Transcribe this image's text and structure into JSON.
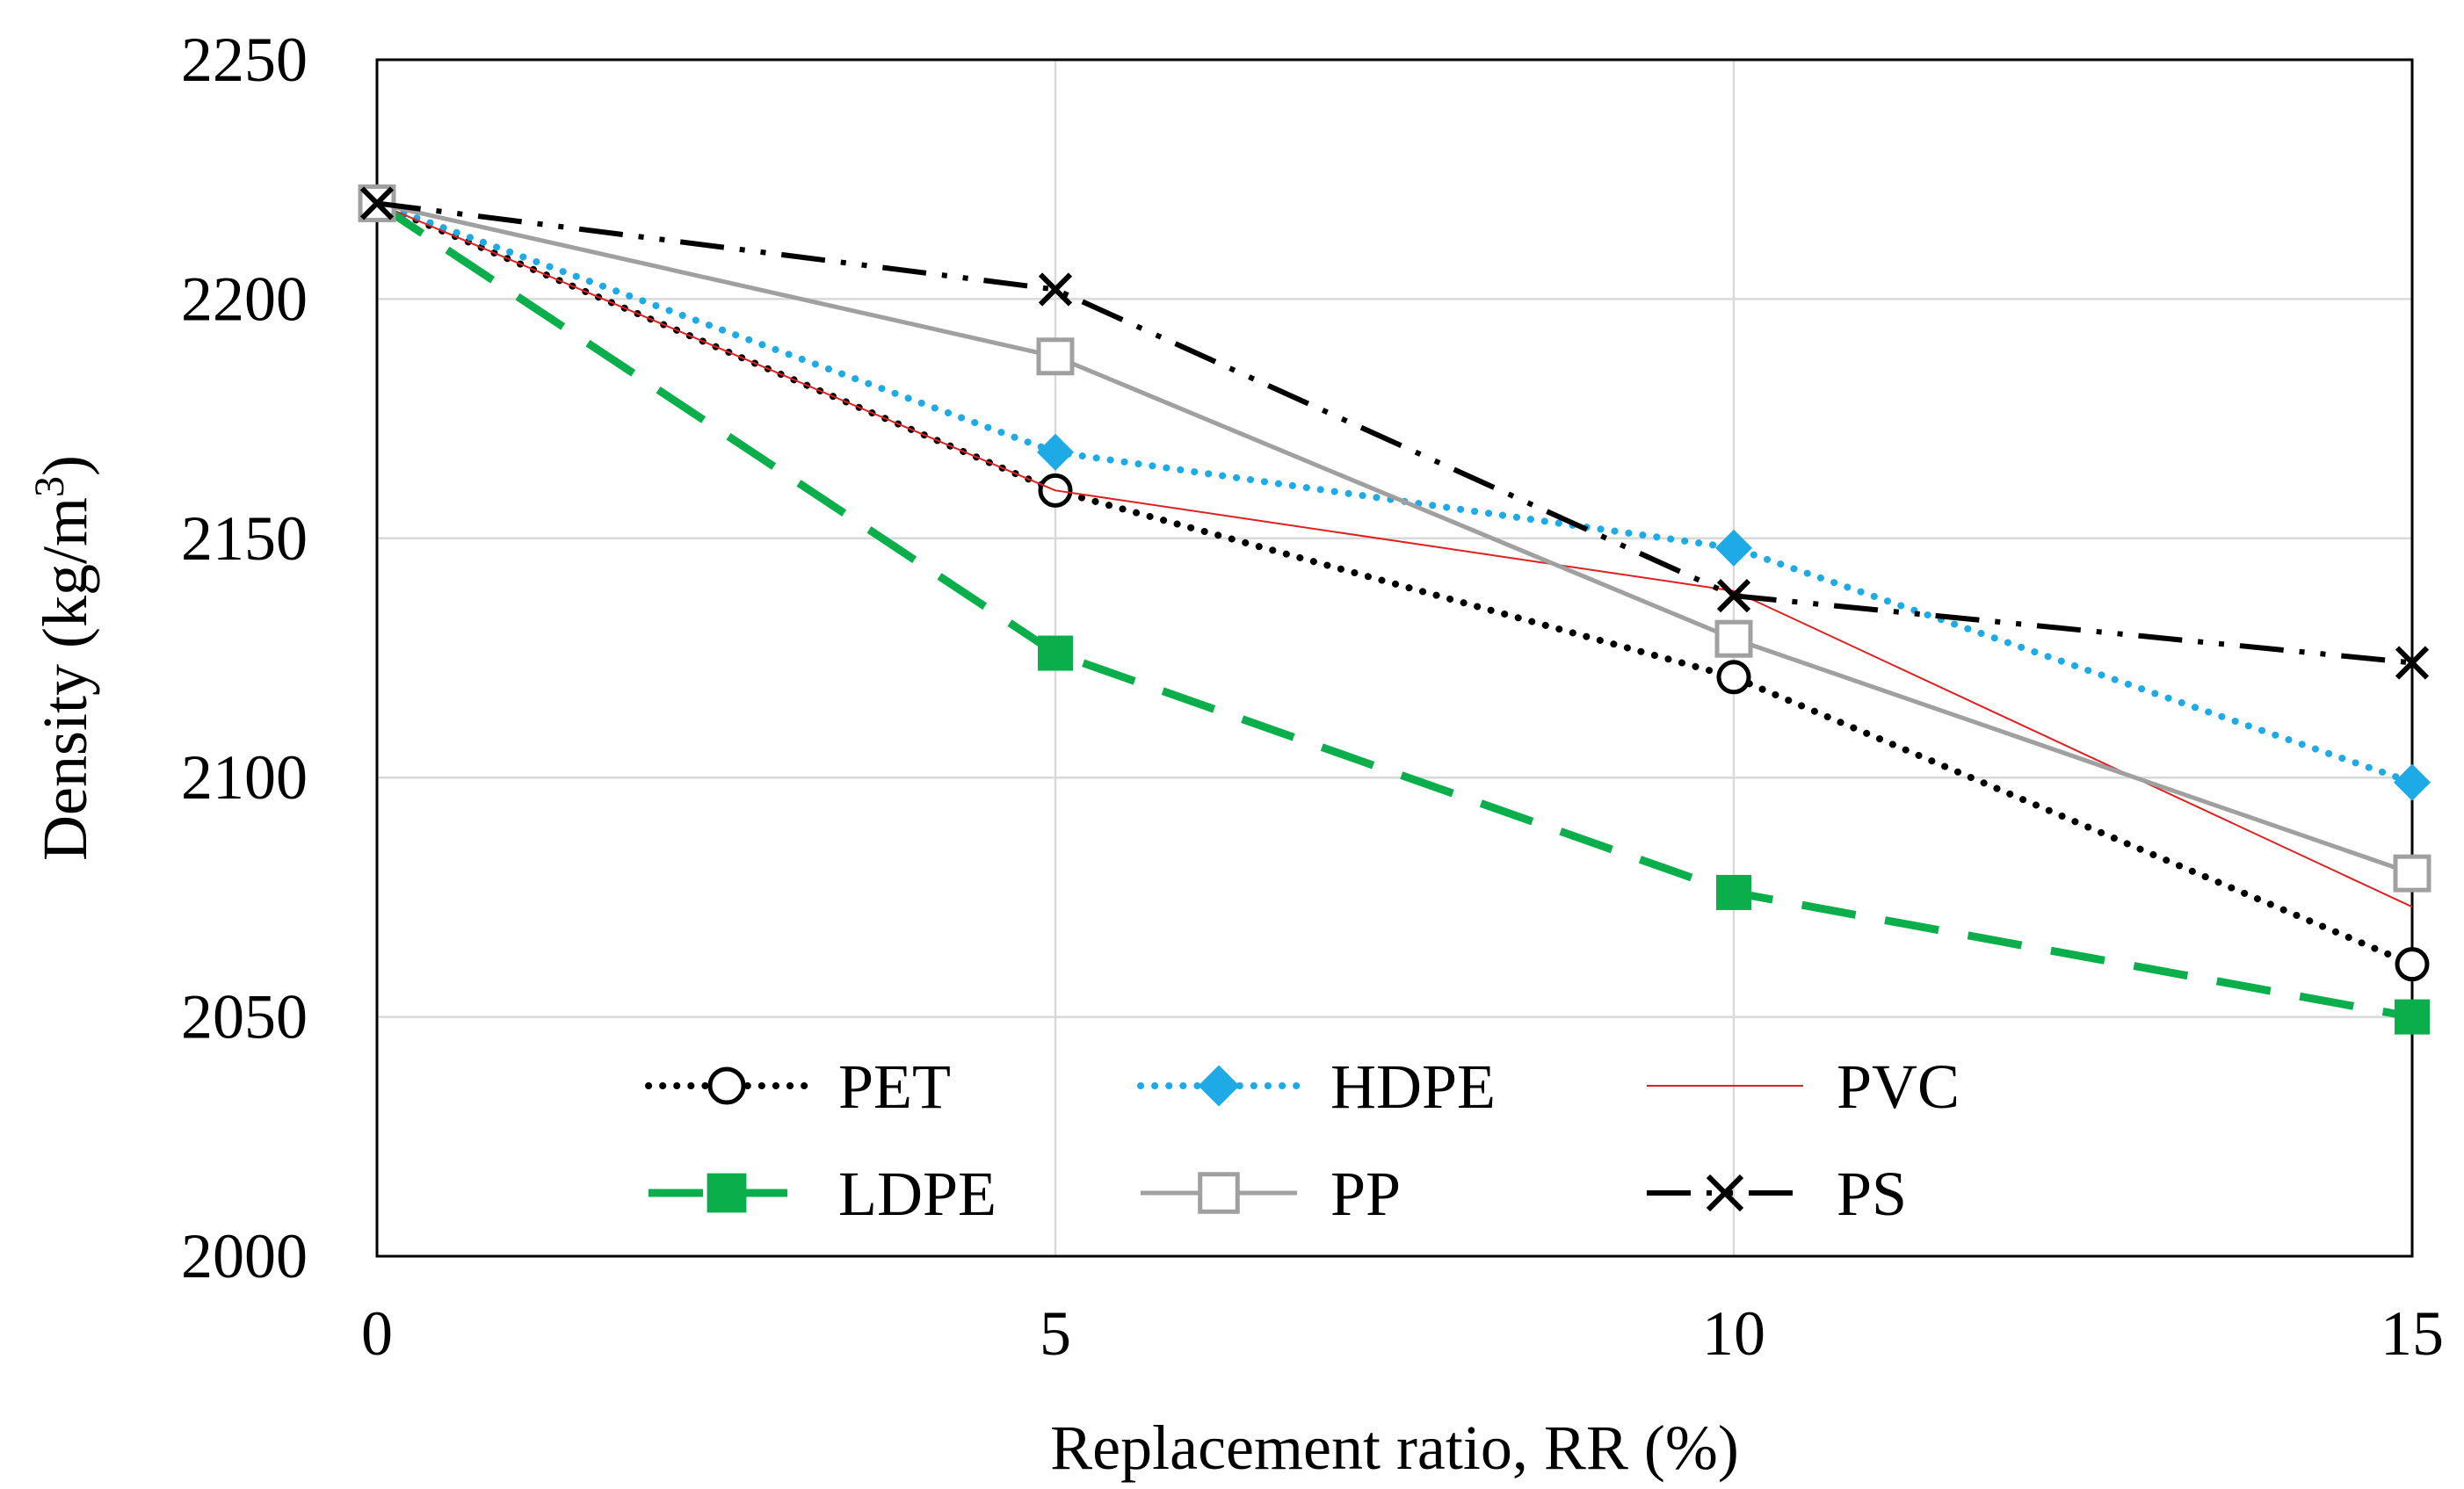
{
  "chart_data": {
    "type": "line",
    "title": "",
    "xlabel": "Replacement ratio, RR (%)",
    "ylabel_main": "Density (kg/m",
    "ylabel_sup": "3",
    "ylabel_close": ")",
    "x": [
      0,
      5,
      10,
      15
    ],
    "xlim": [
      0,
      15
    ],
    "ylim": [
      2000,
      2250
    ],
    "xticks": [
      "0",
      "5",
      "10",
      "15"
    ],
    "yticks": [
      "2000",
      "2050",
      "2100",
      "2150",
      "2200",
      "2250"
    ],
    "grid": true,
    "legend_position": "bottom-inside",
    "series": [
      {
        "name": "PET",
        "values": [
          2220,
          2160,
          2121,
          2061
        ],
        "color": "#000000",
        "line": "dotted",
        "marker": "circle-open"
      },
      {
        "name": "HDPE",
        "values": [
          2220,
          2168,
          2148,
          2099
        ],
        "color": "#1EAAE6",
        "line": "dotted",
        "marker": "diamond"
      },
      {
        "name": "PVC",
        "values": [
          2220,
          2160,
          2139,
          2073
        ],
        "color": "#E02020",
        "line": "thin",
        "marker": "none"
      },
      {
        "name": "LDPE",
        "values": [
          2220,
          2126,
          2076,
          2050
        ],
        "color": "#0AAF4B",
        "line": "long-dash",
        "marker": "square"
      },
      {
        "name": "PP",
        "values": [
          2220,
          2188,
          2129,
          2080
        ],
        "color": "#A0A0A0",
        "line": "solid",
        "marker": "square-open"
      },
      {
        "name": "PS",
        "values": [
          2220,
          2202,
          2138,
          2124
        ],
        "color": "#000000",
        "line": "dash-dot-dot",
        "marker": "x"
      }
    ]
  }
}
